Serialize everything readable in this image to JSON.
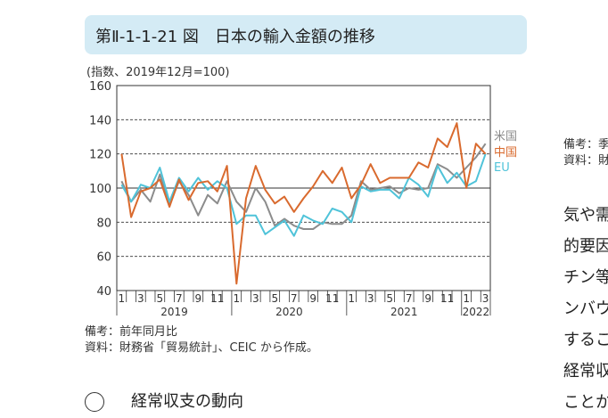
{
  "title": "第Ⅱ-1-1-21 図　日本の輸入金額の推移",
  "index_note": "(指数、2019年12月=100)",
  "notes": {
    "note1": "備考：前年同月比",
    "note2": "資料：財務省「貿易統計」、CEIC から作成。"
  },
  "right_column": {
    "note1": "備考：季",
    "note2": "資料：財",
    "body_lines": [
      "気や需",
      "的要因",
      "チン等",
      "ンバウ",
      "するこ",
      "経常収",
      "ことか"
    ]
  },
  "section_heading": "経常収支の動向",
  "colors": {
    "us": "#8c8c8c",
    "china": "#d96a2e",
    "eu": "#4fc3d9",
    "title_bg": "#d4ebf5"
  },
  "chart_data": {
    "type": "line",
    "title": "",
    "xlabel": "",
    "ylabel": "",
    "ylim": [
      40,
      160
    ],
    "yticks": [
      40,
      60,
      80,
      100,
      120,
      140,
      160
    ],
    "month_tick_labels": [
      "1",
      "3",
      "5",
      "7",
      "9",
      "11",
      "1",
      "3",
      "5",
      "7",
      "9",
      "11",
      "1",
      "3",
      "5",
      "7",
      "9",
      "11",
      "1",
      "3"
    ],
    "year_labels": [
      "2019",
      "2020",
      "2021",
      "2022"
    ],
    "grid": "dashed horizontal",
    "legend_placement": "right",
    "x": [
      "2019-01",
      "2019-02",
      "2019-03",
      "2019-04",
      "2019-05",
      "2019-06",
      "2019-07",
      "2019-08",
      "2019-09",
      "2019-10",
      "2019-11",
      "2019-12",
      "2020-01",
      "2020-02",
      "2020-03",
      "2020-04",
      "2020-05",
      "2020-06",
      "2020-07",
      "2020-08",
      "2020-09",
      "2020-10",
      "2020-11",
      "2020-12",
      "2021-01",
      "2021-02",
      "2021-03",
      "2021-04",
      "2021-05",
      "2021-06",
      "2021-07",
      "2021-08",
      "2021-09",
      "2021-10",
      "2021-11",
      "2021-12",
      "2022-01",
      "2022-02",
      "2022-03"
    ],
    "series": [
      {
        "name": "米国",
        "color": "#8c8c8c",
        "values": [
          104,
          92,
          99,
          92,
          108,
          90,
          104,
          96,
          84,
          96,
          91,
          104,
          92,
          86,
          100,
          92,
          78,
          82,
          78,
          76,
          76,
          80,
          79,
          79,
          84,
          104,
          99,
          100,
          101,
          97,
          100,
          99,
          100,
          114,
          111,
          106,
          112,
          118,
          126
        ]
      },
      {
        "name": "中国",
        "color": "#d96a2e",
        "values": [
          120,
          83,
          98,
          100,
          105,
          89,
          105,
          93,
          103,
          104,
          98,
          113,
          44,
          94,
          113,
          99,
          91,
          95,
          86,
          94,
          101,
          110,
          103,
          112,
          94,
          102,
          114,
          103,
          106,
          106,
          106,
          115,
          112,
          129,
          124,
          138,
          100,
          126,
          120
        ]
      },
      {
        "name": "EU",
        "color": "#4fc3d9",
        "values": [
          102,
          92,
          102,
          100,
          112,
          92,
          106,
          98,
          106,
          99,
          104,
          100,
          79,
          84,
          84,
          73,
          77,
          81,
          72,
          84,
          81,
          79,
          88,
          86,
          80,
          101,
          98,
          99,
          99,
          94,
          106,
          102,
          95,
          113,
          103,
          109,
          101,
          104,
          120
        ]
      }
    ]
  }
}
